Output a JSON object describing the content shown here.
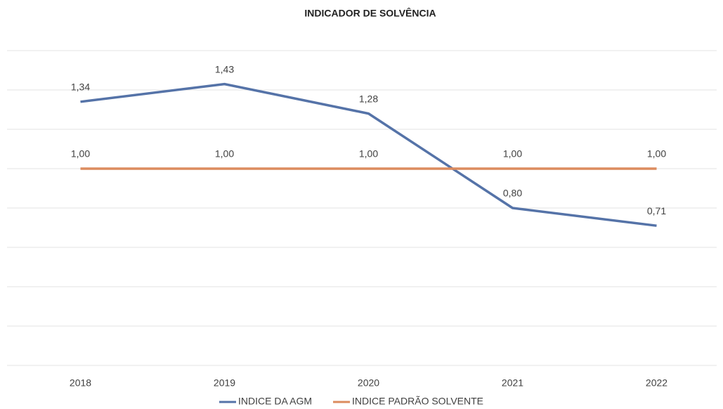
{
  "chart_data": {
    "type": "line",
    "title": "INDICADOR DE SOLVÊNCIA",
    "categories": [
      "2018",
      "2019",
      "2020",
      "2021",
      "2022"
    ],
    "series": [
      {
        "name": "INDICE DA AGM",
        "color": "#5573a8",
        "values": [
          1.34,
          1.43,
          1.28,
          0.8,
          0.71
        ],
        "value_labels": [
          "1,34",
          "1,43",
          "1,28",
          "0,80",
          "0,71"
        ]
      },
      {
        "name": "INDICE PADRÃO SOLVENTE",
        "color": "#dc8b5e",
        "values": [
          1.0,
          1.0,
          1.0,
          1.0,
          1.0
        ],
        "value_labels": [
          "1,00",
          "1,00",
          "1,00",
          "1,00",
          "1,00"
        ]
      }
    ],
    "ylim": [
      0,
      1.6
    ],
    "yticks": [
      0,
      0.2,
      0.4,
      0.6,
      0.8,
      1.0,
      1.2,
      1.4,
      1.6
    ],
    "grid": true,
    "legend": "bottom"
  }
}
